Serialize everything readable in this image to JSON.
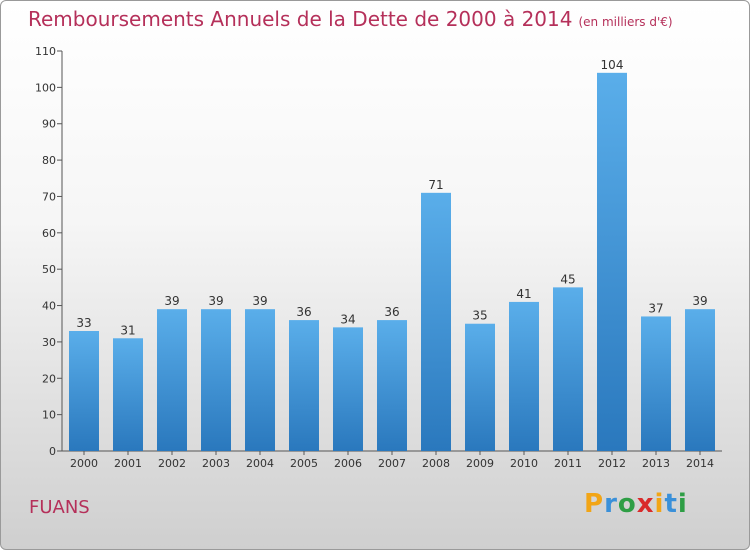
{
  "chart_data": {
    "type": "bar",
    "title": "Remboursements Annuels de la Dette de 2000 à 2014",
    "subtitle": "(en milliers d'€)",
    "categories": [
      "2000",
      "2001",
      "2002",
      "2003",
      "2004",
      "2005",
      "2006",
      "2007",
      "2008",
      "2009",
      "2010",
      "2011",
      "2012",
      "2013",
      "2014"
    ],
    "values": [
      33,
      31,
      39,
      39,
      39,
      36,
      34,
      36,
      71,
      35,
      41,
      45,
      104,
      37,
      39
    ],
    "ylim": [
      0,
      110
    ],
    "yticks": [
      0,
      10,
      20,
      30,
      40,
      50,
      60,
      70,
      80,
      90,
      100,
      110
    ],
    "grid": false,
    "bar_color": "#3a8fd6",
    "xlabel": "",
    "ylabel": ""
  },
  "footer": {
    "location": "FUANS",
    "logo_letters": [
      "P",
      "r",
      "o",
      "x",
      "i",
      "t",
      "i"
    ],
    "logo_colors": [
      "#f2a516",
      "#3a90d9",
      "#2e9e45",
      "#d92b2b",
      "#f2a516",
      "#3a90d9",
      "#2e9e45"
    ]
  }
}
